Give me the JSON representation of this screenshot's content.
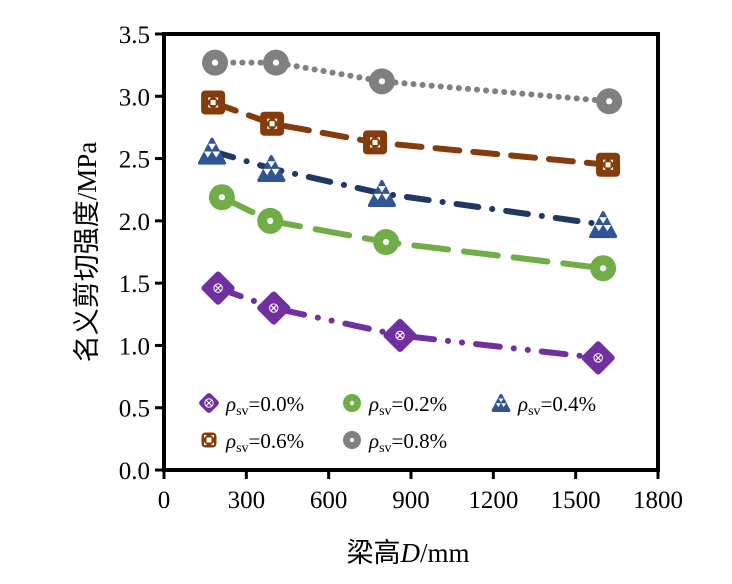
{
  "chart_data": {
    "type": "line",
    "title": "",
    "xlabel": "梁高D/mm",
    "xlabel_parts": {
      "prefix": "梁高",
      "italic": "D",
      "suffix": "/mm"
    },
    "ylabel": "名义剪切强度/MPa",
    "xlim": [
      0,
      1800
    ],
    "ylim": [
      0.0,
      3.5
    ],
    "xticks": [
      0,
      300,
      600,
      900,
      1200,
      1500,
      1800
    ],
    "xtick_labels": [
      "0",
      "300",
      "600",
      "900",
      "1200",
      "1500",
      "1800"
    ],
    "yticks": [
      0.0,
      0.5,
      1.0,
      1.5,
      2.0,
      2.5,
      3.0,
      3.5
    ],
    "ytick_labels": [
      "0.0",
      "0.5",
      "1.0",
      "1.5",
      "2.0",
      "2.5",
      "3.0",
      "3.5"
    ],
    "grid": false,
    "legend_position": "bottom-left inside",
    "legend_symbol": "ρ",
    "legend_subscript": "sv",
    "series": [
      {
        "name": "ρsv=0.0%",
        "value_label": "=0.0%",
        "marker": "diamond",
        "color": "#7030A0",
        "line_color": "#7030A0",
        "dash": "dash-dot-dot",
        "x": [
          197,
          400,
          860,
          1582
        ],
        "y": [
          1.46,
          1.3,
          1.08,
          0.9
        ]
      },
      {
        "name": "ρsv=0.2%",
        "value_label": "=0.2%",
        "marker": "circle",
        "color": "#70AD47",
        "line_color": "#70AD47",
        "dash": "long-dash",
        "x": [
          211,
          387,
          809,
          1600
        ],
        "y": [
          2.19,
          2.0,
          1.83,
          1.62
        ]
      },
      {
        "name": "ρsv=0.4%",
        "value_label": "=0.4%",
        "marker": "triangle",
        "color": "#2F5597",
        "line_color": "#1F3864",
        "dash": "long-dash-dot",
        "x": [
          175,
          391,
          794,
          1600
        ],
        "y": [
          2.56,
          2.42,
          2.22,
          1.97
        ]
      },
      {
        "name": "ρsv=0.6%",
        "value_label": "=0.6%",
        "marker": "square",
        "color": "#843C0C",
        "line_color": "#843C0C",
        "dash": "dash",
        "x": [
          179,
          394,
          769,
          1618
        ],
        "y": [
          2.95,
          2.78,
          2.63,
          2.45
        ]
      },
      {
        "name": "ρsv=0.8%",
        "value_label": "=0.8%",
        "marker": "circle",
        "color": "#808080",
        "line_color": "#808080",
        "dash": "dot",
        "x": [
          186,
          408,
          794,
          1622
        ],
        "y": [
          3.27,
          3.27,
          3.12,
          2.96
        ]
      }
    ]
  }
}
